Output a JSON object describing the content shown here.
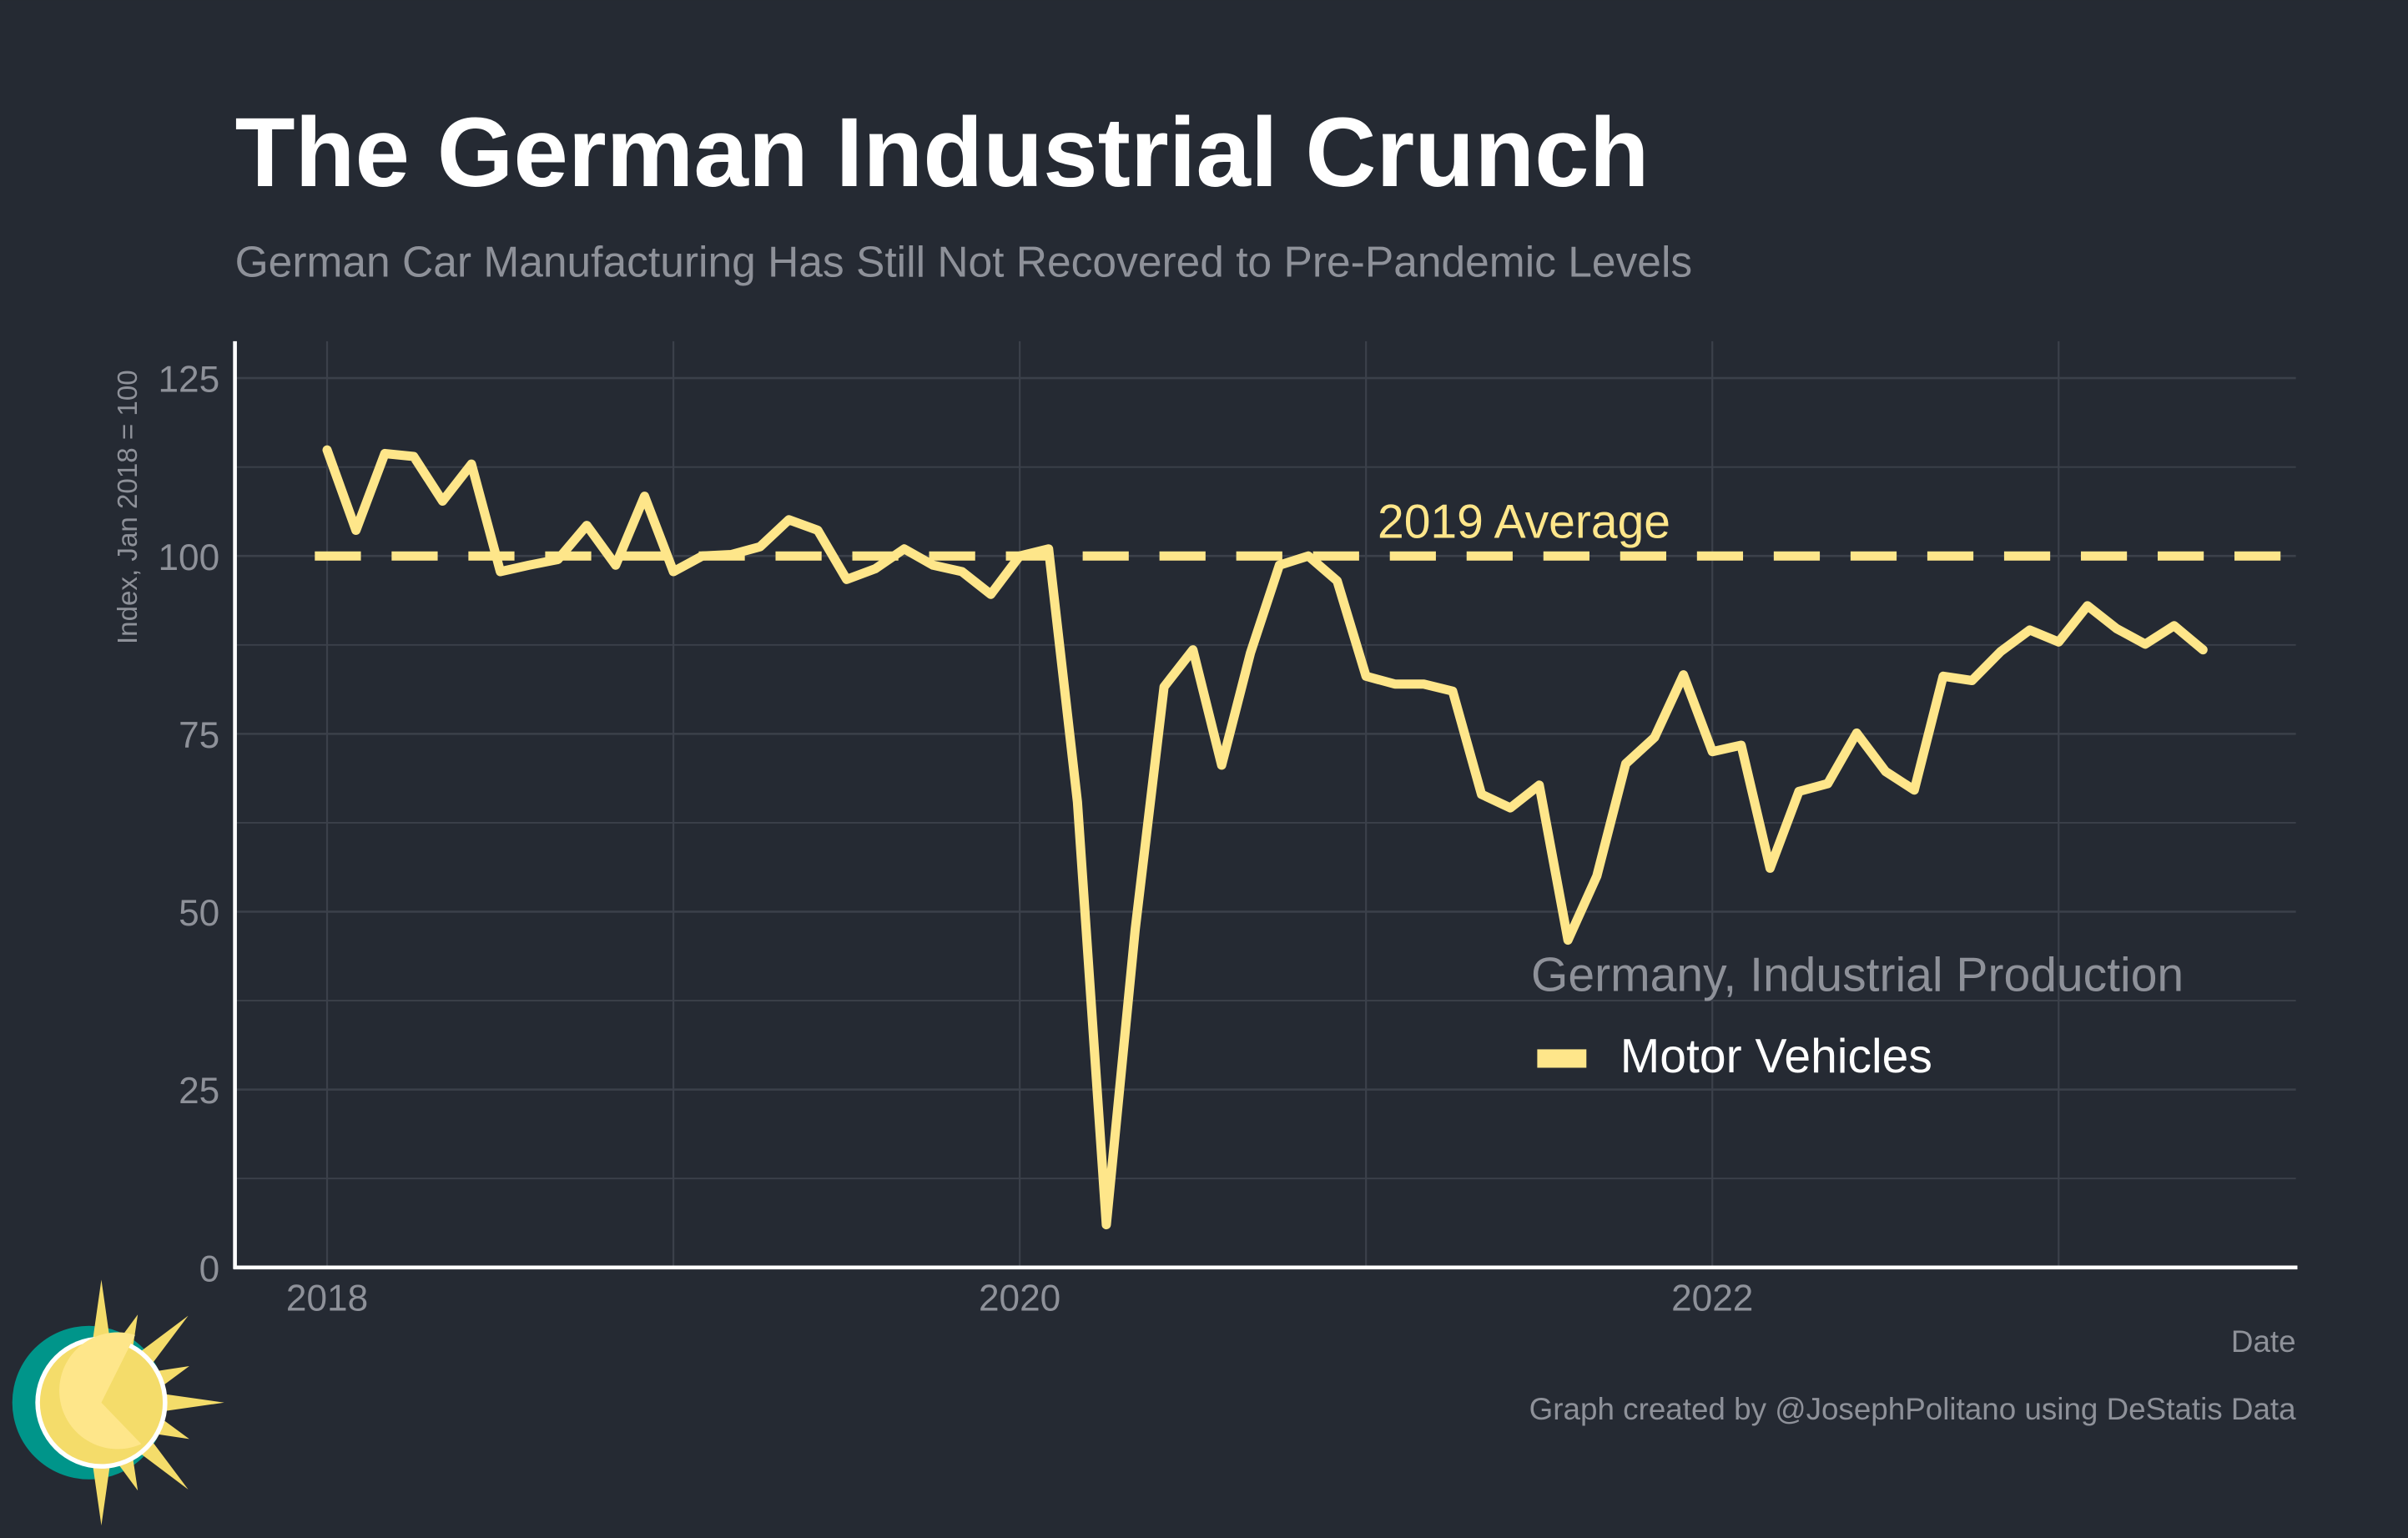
{
  "colors": {
    "background": "#252a33",
    "line": "#fee68a",
    "grid": "#3b404a",
    "axis": "#ffffff",
    "muted": "#8e9199",
    "logo_teal": "#00958a",
    "logo_yellow": "#f4dc6a"
  },
  "chart_data": {
    "type": "line",
    "title": "The German Industrial Crunch",
    "subtitle": "German Car Manufacturing Has Still Not Recovered to Pre-Pandemic Levels",
    "xlabel": "Date",
    "ylabel": "Index, Jan 2018 = 100",
    "ylim": [
      0,
      125
    ],
    "yticks": [
      "0",
      "25",
      "50",
      "75",
      "100",
      "125"
    ],
    "xticks": [
      "2018",
      "2020",
      "2022"
    ],
    "grid": true,
    "legend": {
      "title": "Germany, Industrial Production",
      "placement": "bottom-right"
    },
    "reference_line": {
      "label": "2019 Average",
      "value": 100,
      "style": "dashed"
    },
    "caption": "Graph created by @JosephPolitano using DeStatis Data",
    "series": [
      {
        "name": "Motor Vehicles",
        "x": [
          "2018-01",
          "2018-02",
          "2018-03",
          "2018-04",
          "2018-05",
          "2018-06",
          "2018-07",
          "2018-08",
          "2018-09",
          "2018-10",
          "2018-11",
          "2018-12",
          "2019-01",
          "2019-02",
          "2019-03",
          "2019-04",
          "2019-05",
          "2019-06",
          "2019-07",
          "2019-08",
          "2019-09",
          "2019-10",
          "2019-11",
          "2019-12",
          "2020-01",
          "2020-02",
          "2020-03",
          "2020-04",
          "2020-05",
          "2020-06",
          "2020-07",
          "2020-08",
          "2020-09",
          "2020-10",
          "2020-11",
          "2020-12",
          "2021-01",
          "2021-02",
          "2021-03",
          "2021-04",
          "2021-05",
          "2021-06",
          "2021-07",
          "2021-08",
          "2021-09",
          "2021-10",
          "2021-11",
          "2021-12",
          "2022-01",
          "2022-02",
          "2022-03",
          "2022-04",
          "2022-05",
          "2022-06",
          "2022-07",
          "2022-08",
          "2022-09",
          "2022-10",
          "2022-11",
          "2022-12",
          "2023-01",
          "2023-02",
          "2023-03",
          "2023-04",
          "2023-05",
          "2023-06"
        ],
        "values": [
          114.9,
          103.6,
          114.4,
          114.0,
          107.7,
          112.9,
          97.8,
          98.7,
          99.5,
          104.3,
          98.7,
          108.4,
          97.8,
          100.0,
          100.2,
          101.3,
          105.1,
          103.6,
          96.7,
          98.2,
          101.0,
          98.7,
          97.8,
          94.6,
          100.0,
          101.0,
          65.4,
          6.0,
          47.5,
          81.6,
          86.8,
          70.6,
          86.4,
          98.7,
          100.0,
          96.5,
          83.1,
          82.0,
          82.0,
          81.0,
          66.5,
          64.6,
          67.8,
          46.0,
          55.0,
          70.8,
          74.5,
          83.3,
          72.5,
          73.4,
          56.1,
          66.9,
          68.0,
          75.1,
          69.7,
          67.1,
          83.1,
          82.5,
          86.6,
          89.6,
          87.9,
          93.0,
          89.8,
          87.6,
          90.2,
          86.8
        ]
      }
    ]
  }
}
